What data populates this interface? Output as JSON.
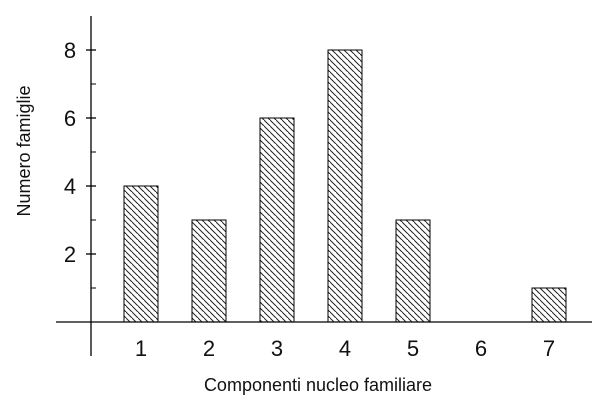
{
  "chart_data": {
    "type": "bar",
    "title": "",
    "xlabel": "Componenti nucleo familiare",
    "ylabel": "Numero famiglie",
    "categories": [
      "1",
      "2",
      "3",
      "4",
      "5",
      "6",
      "7"
    ],
    "values": [
      4,
      3,
      6,
      8,
      3,
      0,
      1
    ],
    "ylim": [
      0,
      9
    ],
    "y_major_ticks": [
      2,
      4,
      6,
      8
    ],
    "y_minor_ticks": [
      1,
      3,
      5,
      7
    ],
    "grid": false,
    "bar_fill": "hatched",
    "colors": {
      "bar_stroke": "#000000",
      "hatch": "#222222",
      "axis": "#000000"
    }
  }
}
